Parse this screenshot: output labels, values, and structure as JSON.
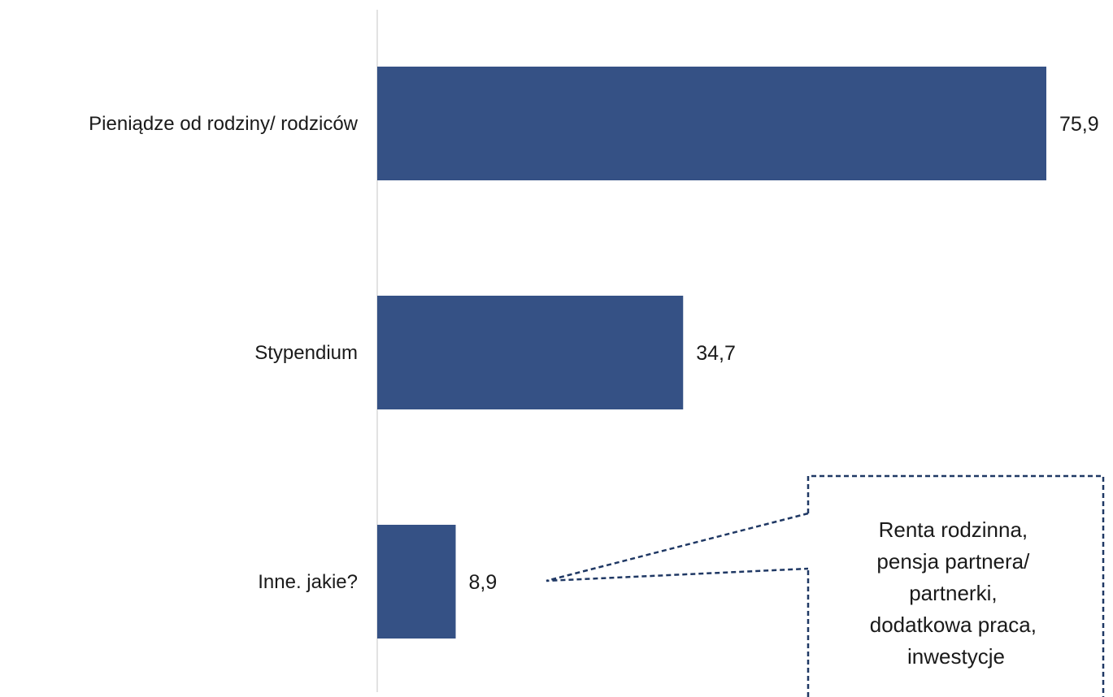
{
  "chart_data": {
    "type": "bar",
    "orientation": "horizontal",
    "categories": [
      "Pieniądze od rodziny/ rodziców",
      "Stypendium",
      "Inne. jakie?"
    ],
    "values": [
      75.9,
      34.7,
      8.9
    ],
    "value_labels": [
      "75,9",
      "34,7",
      "8,9"
    ],
    "xlim": [
      0,
      80
    ],
    "grid": false,
    "bar_color": "#355185",
    "axis_color": "#d9d9d9",
    "callout": {
      "category": "Inne. jakie?",
      "lines": [
        "Renta rodzinna,",
        "pensja partnera/",
        "partnerki,",
        "dodatkowa praca,",
        "inwestycje"
      ],
      "border_color": "#1f3864",
      "border_style": "dashed"
    }
  }
}
